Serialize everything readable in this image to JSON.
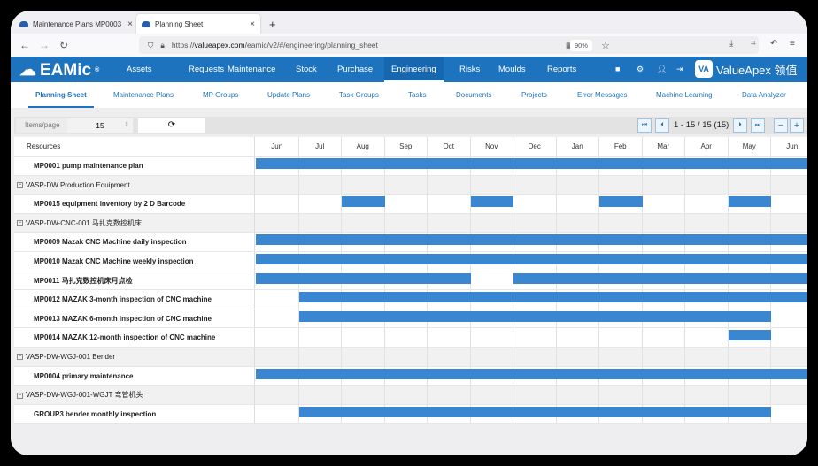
{
  "browser": {
    "tabs": [
      {
        "label": "Maintenance Plans MP0003"
      },
      {
        "label": "Planning Sheet"
      }
    ],
    "url_prefix": "https://",
    "url_host": "valueapex.com",
    "url_path": "/eamic/v2/#/engineering/planning_sheet",
    "zoom": "90%"
  },
  "nav": {
    "logo": "EAMic",
    "logo_mark": "®",
    "items": [
      "Assets",
      "Requests",
      "Maintenance",
      "Stock",
      "Purchase",
      "Engineering",
      "Risks",
      "Moulds",
      "Reports"
    ],
    "active": "Engineering",
    "brand": "ValueApex 领值",
    "brand_mark": "VA"
  },
  "subnav": {
    "items": [
      "Planning Sheet",
      "Maintenance Plans",
      "MP Groups",
      "Update Plans",
      "Task Groups",
      "Tasks",
      "Documents",
      "Projects",
      "Error Messages",
      "Machine Learning",
      "Data Analyzer"
    ],
    "active": "Planning Sheet"
  },
  "toolbar": {
    "items_per_page_label": "Items/page",
    "items_per_page": "15",
    "pagination": "1 - 15 / 15 (15)"
  },
  "colors": {
    "brand": "#1e73be",
    "bar": "#3b86d1"
  },
  "grid": {
    "resource_header": "Resources",
    "months": [
      "Jun",
      "Jul",
      "Aug",
      "Sep",
      "Oct",
      "Nov",
      "Dec",
      "Jan",
      "Feb",
      "Mar",
      "Apr",
      "May",
      "Jun"
    ],
    "rows": [
      {
        "type": "plan",
        "label": "MP0001 pump maintenance plan",
        "months": [
          0,
          1,
          2,
          3,
          4,
          5,
          6,
          7,
          8,
          9,
          10,
          11,
          12
        ]
      },
      {
        "type": "group",
        "label": "VASP-DW Production Equipment"
      },
      {
        "type": "plan",
        "label": "MP0015 equipment inventory by 2 D Barcode",
        "months": [
          2,
          5,
          8,
          11
        ]
      },
      {
        "type": "group",
        "label": "VASP-DW-CNC-001 马扎克数控机床"
      },
      {
        "type": "plan",
        "label": "MP0009 Mazak CNC Machine daily inspection",
        "months": [
          0,
          1,
          2,
          3,
          4,
          5,
          6,
          7,
          8,
          9,
          10,
          11,
          12
        ]
      },
      {
        "type": "plan",
        "label": "MP0010 Mazak CNC Machine weekly inspection",
        "months": [
          0,
          1,
          2,
          3,
          4,
          5,
          6,
          7,
          8,
          9,
          10,
          11,
          12
        ]
      },
      {
        "type": "plan",
        "label": "MP0011 马扎克数控机床月点检",
        "months": [
          0,
          1,
          2,
          3,
          4,
          6,
          7,
          8,
          9,
          10,
          11,
          12
        ]
      },
      {
        "type": "plan",
        "label": "MP0012 MAZAK 3-month inspection of CNC machine",
        "months": [
          1,
          2,
          3,
          4,
          5,
          6,
          7,
          8,
          9,
          10,
          11,
          12
        ]
      },
      {
        "type": "plan",
        "label": "MP0013 MAZAK 6-month inspection of CNC machine",
        "months": [
          1,
          2,
          3,
          4,
          5,
          6,
          7,
          8,
          9,
          10,
          11
        ]
      },
      {
        "type": "plan",
        "label": "MP0014 MAZAK 12-month inspection of CNC machine",
        "months": [
          11
        ]
      },
      {
        "type": "group",
        "label": "VASP-DW-WGJ-001 Bender"
      },
      {
        "type": "plan",
        "label": "MP0004 primary maintenance",
        "months": [
          0,
          1,
          2,
          3,
          4,
          5,
          6,
          7,
          8,
          9,
          10,
          11,
          12
        ]
      },
      {
        "type": "group",
        "label": "VASP-DW-WGJ-001-WGJT 弯管机头"
      },
      {
        "type": "plan",
        "label": "GROUP3 bender monthly inspection",
        "months": [
          1,
          2,
          3,
          4,
          5,
          6,
          7,
          8,
          9,
          10,
          11
        ]
      }
    ]
  }
}
